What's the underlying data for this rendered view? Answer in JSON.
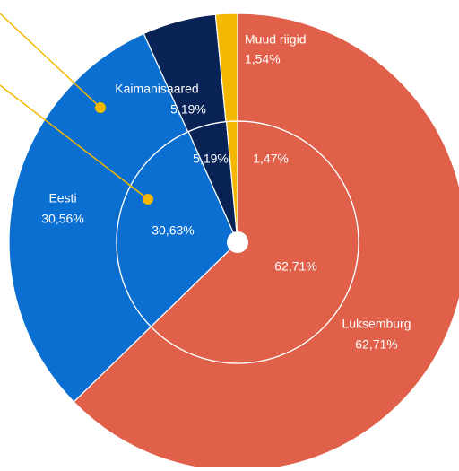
{
  "chart_data": {
    "type": "donut",
    "categories": [
      "Luksemburg",
      "Eesti",
      "Kaimanisaared",
      "Muud riigid"
    ],
    "colors": [
      "#e0604a",
      "#0a6fd0",
      "#0a2356",
      "#f5b800"
    ],
    "series": [
      {
        "values": [
          62.71,
          30.56,
          5.19,
          1.54
        ],
        "value_labels": [
          "62,71%",
          "30,56%",
          "5,19%",
          "1,54%"
        ]
      },
      {
        "values": [
          62.71,
          30.63,
          5.19,
          1.47
        ],
        "value_labels": [
          "62,71%",
          "30,63%",
          "5,19%",
          "1,47%"
        ]
      }
    ]
  }
}
